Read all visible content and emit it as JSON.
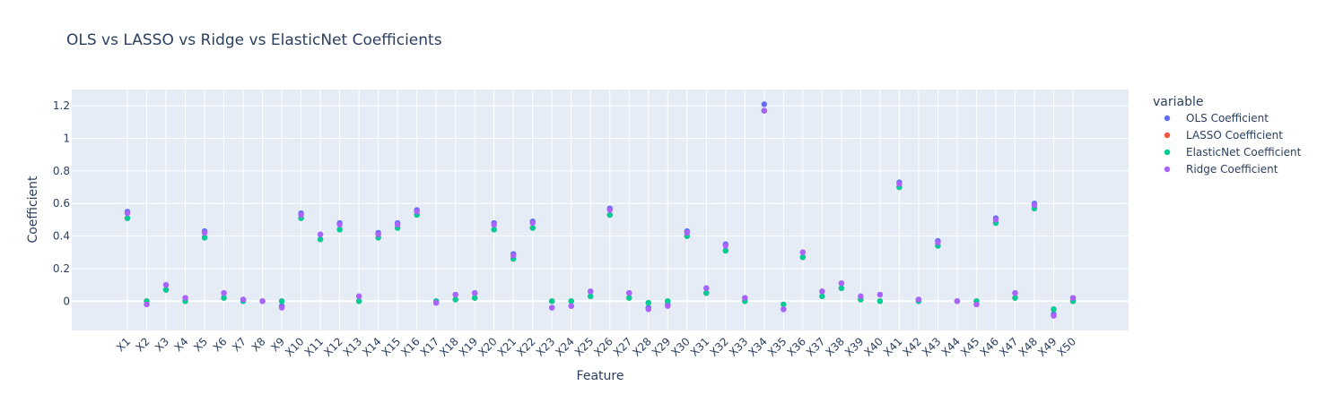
{
  "chart_data": {
    "type": "scatter",
    "title": "OLS vs LASSO vs Ridge vs ElasticNet Coefficients",
    "xlabel": "Feature",
    "ylabel": "Coefficient",
    "ylim": [
      -0.18,
      1.3
    ],
    "yticks": [
      0,
      0.2,
      0.4,
      0.6,
      0.8,
      1,
      1.2
    ],
    "ytick_labels": [
      "0",
      "0.2",
      "0.4",
      "0.6",
      "0.8",
      "1",
      "1.2"
    ],
    "grid": true,
    "legend": {
      "title": "variable",
      "placement": "right"
    },
    "categories": [
      "X1",
      "X2",
      "X3",
      "X4",
      "X5",
      "X6",
      "X7",
      "X8",
      "X9",
      "X10",
      "X11",
      "X12",
      "X13",
      "X14",
      "X15",
      "X16",
      "X17",
      "X18",
      "X19",
      "X20",
      "X21",
      "X22",
      "X23",
      "X24",
      "X25",
      "X26",
      "X27",
      "X28",
      "X29",
      "X30",
      "X31",
      "X32",
      "X33",
      "X34",
      "X35",
      "X36",
      "X37",
      "X38",
      "X39",
      "X40",
      "X41",
      "X42",
      "X43",
      "X44",
      "X45",
      "X46",
      "X47",
      "X48",
      "X49",
      "X50"
    ],
    "series": [
      {
        "name": "OLS Coefficient",
        "color": "#636efa",
        "values": [
          0.55,
          -0.02,
          0.1,
          0.02,
          0.43,
          0.05,
          0.01,
          0.0,
          -0.03,
          0.54,
          0.41,
          0.48,
          0.03,
          0.42,
          0.48,
          0.56,
          -0.01,
          0.04,
          0.05,
          0.48,
          0.29,
          0.49,
          -0.04,
          -0.03,
          0.06,
          0.57,
          0.05,
          -0.04,
          -0.02,
          0.43,
          0.08,
          0.35,
          0.02,
          1.21,
          -0.05,
          0.3,
          0.06,
          0.11,
          0.03,
          0.04,
          0.73,
          0.01,
          0.37,
          0.0,
          -0.02,
          0.51,
          0.05,
          0.6,
          -0.08,
          0.02
        ]
      },
      {
        "name": "LASSO Coefficient",
        "color": "#ef553b",
        "values": [
          0.51,
          0.0,
          0.07,
          0.0,
          0.39,
          0.02,
          0.0,
          0.0,
          0.0,
          0.51,
          0.38,
          0.44,
          0.0,
          0.39,
          0.45,
          0.53,
          0.0,
          0.01,
          0.02,
          0.44,
          0.26,
          0.45,
          0.0,
          0.0,
          0.03,
          0.53,
          0.02,
          -0.01,
          0.0,
          0.4,
          0.05,
          0.31,
          0.0,
          1.17,
          -0.02,
          0.27,
          0.03,
          0.08,
          0.01,
          0.0,
          0.7,
          0.0,
          0.34,
          0.0,
          0.0,
          0.48,
          0.02,
          0.57,
          -0.05,
          0.0
        ]
      },
      {
        "name": "ElasticNet Coefficient",
        "color": "#00cc96",
        "values": [
          0.51,
          0.0,
          0.07,
          0.0,
          0.39,
          0.02,
          0.0,
          0.0,
          0.0,
          0.51,
          0.38,
          0.44,
          0.0,
          0.39,
          0.45,
          0.53,
          0.0,
          0.01,
          0.02,
          0.44,
          0.26,
          0.45,
          0.0,
          0.0,
          0.03,
          0.53,
          0.02,
          -0.01,
          0.0,
          0.4,
          0.05,
          0.31,
          0.0,
          1.17,
          -0.02,
          0.27,
          0.03,
          0.08,
          0.01,
          0.0,
          0.7,
          0.0,
          0.34,
          0.0,
          0.0,
          0.48,
          0.02,
          0.57,
          -0.05,
          0.0
        ]
      },
      {
        "name": "Ridge Coefficient",
        "color": "#ab63fa",
        "values": [
          0.54,
          -0.02,
          0.1,
          0.02,
          0.42,
          0.05,
          0.01,
          0.0,
          -0.04,
          0.53,
          0.41,
          0.47,
          0.03,
          0.41,
          0.47,
          0.55,
          -0.01,
          0.04,
          0.05,
          0.47,
          0.28,
          0.48,
          -0.04,
          -0.03,
          0.06,
          0.56,
          0.05,
          -0.05,
          -0.03,
          0.42,
          0.08,
          0.34,
          0.02,
          1.17,
          -0.05,
          0.3,
          0.06,
          0.11,
          0.03,
          0.04,
          0.72,
          0.01,
          0.36,
          0.0,
          -0.02,
          0.5,
          0.05,
          0.59,
          -0.09,
          0.02
        ]
      }
    ]
  }
}
